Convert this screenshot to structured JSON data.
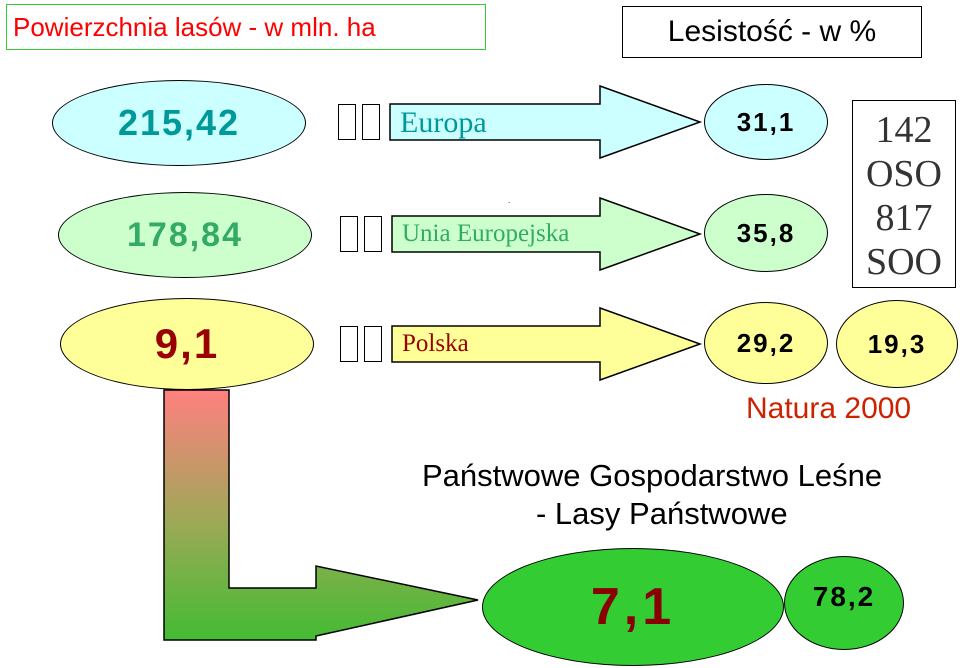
{
  "header": {
    "forest_area_title": "Powierzchnia lasów - w mln. ha",
    "forest_cover_title": "Lesistość  - w %"
  },
  "rows": [
    {
      "region": "Europa",
      "area": "215,42",
      "cover": "31,1"
    },
    {
      "region": "Unia Europejska",
      "area": "178,84",
      "cover": "35,8"
    },
    {
      "region": "Polska",
      "area": "9,1",
      "cover": "29,2"
    }
  ],
  "natura": {
    "oso": "142 OSO",
    "soo": "817 SOO",
    "oso_count": "142",
    "oso_label": "OSO",
    "soo_count": "817",
    "soo_label": "SOO",
    "percent": "19,3",
    "label": "Natura 2000"
  },
  "lp": {
    "line1": "Państwowe Gospodarstwo Leśne",
    "line2": "- Lasy Państwowe",
    "area": "7,1",
    "share": "78,2"
  },
  "colors": {
    "title_green": "#ff0000",
    "europe_fill": "#ccffff",
    "eu_fill": "#ccffcc",
    "poland_fill": "#ffff99",
    "lp_fill": "#33cc33",
    "gradient_top": "#ff8080",
    "gradient_bottom": "#44bb33",
    "europe_text": "#009999",
    "eu_text": "#33aa66",
    "poland_text": "#990000"
  }
}
